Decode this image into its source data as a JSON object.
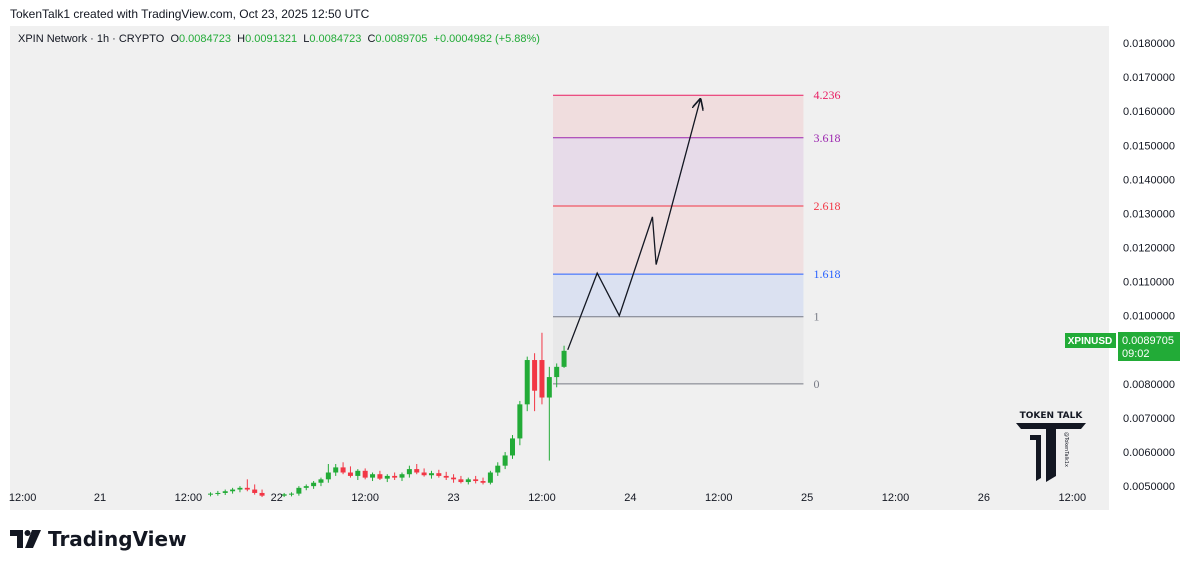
{
  "header": {
    "caption": "TokenTalk1 created with TradingView.com, Oct 23, 2025 12:50 UTC"
  },
  "legend": {
    "symbol": "XPIN Network · 1h · CRYPTO",
    "open_label": "O",
    "open": "0.0084723",
    "high_label": "H",
    "high": "0.0091321",
    "low_label": "L",
    "low": "0.0084723",
    "close_label": "C",
    "close": "0.0089705",
    "change": "+0.0004982 (+5.88%)"
  },
  "price_badge": {
    "symbol": "XPINUSD",
    "price": "0.0089705",
    "countdown": "09:02"
  },
  "watermark": {
    "brand": "TOKEN TALK",
    "handle": "@TokenTalk1x"
  },
  "footer": {
    "brand": "TradingView"
  },
  "colors": {
    "up": "#22ab37",
    "down": "#f23645",
    "fib_4236": "#e91e63",
    "fib_3618": "#9c27b0",
    "fib_2618": "#f23645",
    "fib_1618": "#2962ff",
    "fib_base": "#787b86"
  },
  "chart_data": {
    "type": "candlestick",
    "interval": "1h",
    "ylim": [
      0.0043,
      0.0185
    ],
    "y_ticks": [
      "0.0180000",
      "0.0170000",
      "0.0160000",
      "0.0150000",
      "0.0140000",
      "0.0130000",
      "0.0120000",
      "0.0110000",
      "0.0100000",
      "0.0090000",
      "0.0080000",
      "0.0070000",
      "0.0060000",
      "0.0050000"
    ],
    "y_tick_values": [
      0.018,
      0.017,
      0.016,
      0.015,
      0.014,
      0.013,
      0.012,
      0.011,
      0.01,
      0.009,
      0.008,
      0.007,
      0.006,
      0.005
    ],
    "x_ticks": [
      {
        "label": "12:00",
        "t": -10.5
      },
      {
        "label": "21",
        "t": 0
      },
      {
        "label": "12:00",
        "t": 12
      },
      {
        "label": "22",
        "t": 24
      },
      {
        "label": "12:00",
        "t": 36
      },
      {
        "label": "23",
        "t": 48
      },
      {
        "label": "12:00",
        "t": 60
      },
      {
        "label": "24",
        "t": 72
      },
      {
        "label": "12:00",
        "t": 84
      },
      {
        "label": "25",
        "t": 96
      },
      {
        "label": "12:00",
        "t": 108
      },
      {
        "label": "26",
        "t": 120
      },
      {
        "label": "12:00",
        "t": 132
      }
    ],
    "candles": [
      [
        15,
        0.00475,
        0.00482,
        0.0047,
        0.00478
      ],
      [
        16,
        0.00478,
        0.00486,
        0.00472,
        0.0048
      ],
      [
        17,
        0.0048,
        0.0049,
        0.00474,
        0.00485
      ],
      [
        18,
        0.00485,
        0.00495,
        0.00478,
        0.0049
      ],
      [
        19,
        0.0049,
        0.005,
        0.00482,
        0.00495
      ],
      [
        20,
        0.00495,
        0.0052,
        0.00485,
        0.0049
      ],
      [
        21,
        0.0049,
        0.00505,
        0.00475,
        0.0048
      ],
      [
        22,
        0.0048,
        0.0049,
        0.00468,
        0.00472
      ],
      [
        25,
        0.00472,
        0.0048,
        0.00468,
        0.00476
      ],
      [
        26,
        0.00476,
        0.00482,
        0.0047,
        0.00478
      ],
      [
        27,
        0.00478,
        0.005,
        0.00472,
        0.00495
      ],
      [
        28,
        0.00495,
        0.00505,
        0.00488,
        0.005
      ],
      [
        29,
        0.005,
        0.00515,
        0.00492,
        0.0051
      ],
      [
        30,
        0.0051,
        0.00525,
        0.005,
        0.0052
      ],
      [
        31,
        0.0052,
        0.00565,
        0.0051,
        0.0054
      ],
      [
        32,
        0.0054,
        0.00565,
        0.0053,
        0.00555
      ],
      [
        33,
        0.00555,
        0.0057,
        0.00535,
        0.0054
      ],
      [
        34,
        0.0054,
        0.00558,
        0.00525,
        0.0053
      ],
      [
        35,
        0.0053,
        0.0055,
        0.00518,
        0.00545
      ],
      [
        36,
        0.00545,
        0.00552,
        0.0052,
        0.00525
      ],
      [
        37,
        0.00525,
        0.0054,
        0.00515,
        0.00535
      ],
      [
        38,
        0.00535,
        0.00545,
        0.00518,
        0.00522
      ],
      [
        39,
        0.00522,
        0.00535,
        0.00512,
        0.0053
      ],
      [
        40,
        0.0053,
        0.0054,
        0.00518,
        0.00525
      ],
      [
        41,
        0.00525,
        0.0054,
        0.00515,
        0.00535
      ],
      [
        42,
        0.00535,
        0.0056,
        0.00525,
        0.0055
      ],
      [
        43,
        0.0055,
        0.00565,
        0.00535,
        0.0054
      ],
      [
        44,
        0.0054,
        0.00552,
        0.00528,
        0.00532
      ],
      [
        45,
        0.00532,
        0.00545,
        0.00522,
        0.00538
      ],
      [
        46,
        0.00538,
        0.00548,
        0.00525,
        0.0053
      ],
      [
        47,
        0.0053,
        0.00542,
        0.00518,
        0.00525
      ],
      [
        48,
        0.00525,
        0.00535,
        0.0051,
        0.0052
      ],
      [
        49,
        0.0052,
        0.0053,
        0.00508,
        0.00512
      ],
      [
        50,
        0.00512,
        0.00525,
        0.00505,
        0.0052
      ],
      [
        51,
        0.0052,
        0.0053,
        0.00508,
        0.00515
      ],
      [
        52,
        0.00515,
        0.00525,
        0.00505,
        0.0051
      ],
      [
        53,
        0.0051,
        0.00545,
        0.00505,
        0.0054
      ],
      [
        54,
        0.0054,
        0.0057,
        0.0053,
        0.0056
      ],
      [
        55,
        0.0056,
        0.006,
        0.0055,
        0.0059
      ],
      [
        56,
        0.0059,
        0.0065,
        0.0058,
        0.0064
      ],
      [
        57,
        0.0064,
        0.0075,
        0.0062,
        0.0074
      ],
      [
        58,
        0.0074,
        0.0088,
        0.0072,
        0.0087
      ],
      [
        59,
        0.0087,
        0.0089,
        0.0072,
        0.0078
      ],
      [
        60,
        0.0087,
        0.0095,
        0.0074,
        0.0076
      ],
      [
        61,
        0.0076,
        0.0085,
        0.00575,
        0.0082
      ],
      [
        62,
        0.0082,
        0.0086,
        0.0079,
        0.0085
      ],
      [
        63,
        0.0085,
        0.00912,
        0.00847,
        0.00897
      ]
    ],
    "fib_levels": [
      {
        "label": "4.236",
        "value": 0.01647,
        "color": "#e91e63"
      },
      {
        "label": "3.618",
        "value": 0.01522,
        "color": "#9c27b0"
      },
      {
        "label": "2.618",
        "value": 0.01322,
        "color": "#f23645"
      },
      {
        "label": "1.618",
        "value": 0.01122,
        "color": "#2962ff"
      },
      {
        "label": "1",
        "value": 0.00997,
        "color": "#787b86"
      },
      {
        "label": "0",
        "value": 0.008,
        "color": "#787b86"
      }
    ],
    "fib_t_range": [
      61.5,
      95.5
    ],
    "projection_path": [
      [
        63.5,
        0.009
      ],
      [
        67.5,
        0.01125
      ],
      [
        70.5,
        0.01
      ],
      [
        75,
        0.0129
      ],
      [
        75.5,
        0.0115
      ],
      [
        81.5,
        0.01635
      ]
    ]
  }
}
